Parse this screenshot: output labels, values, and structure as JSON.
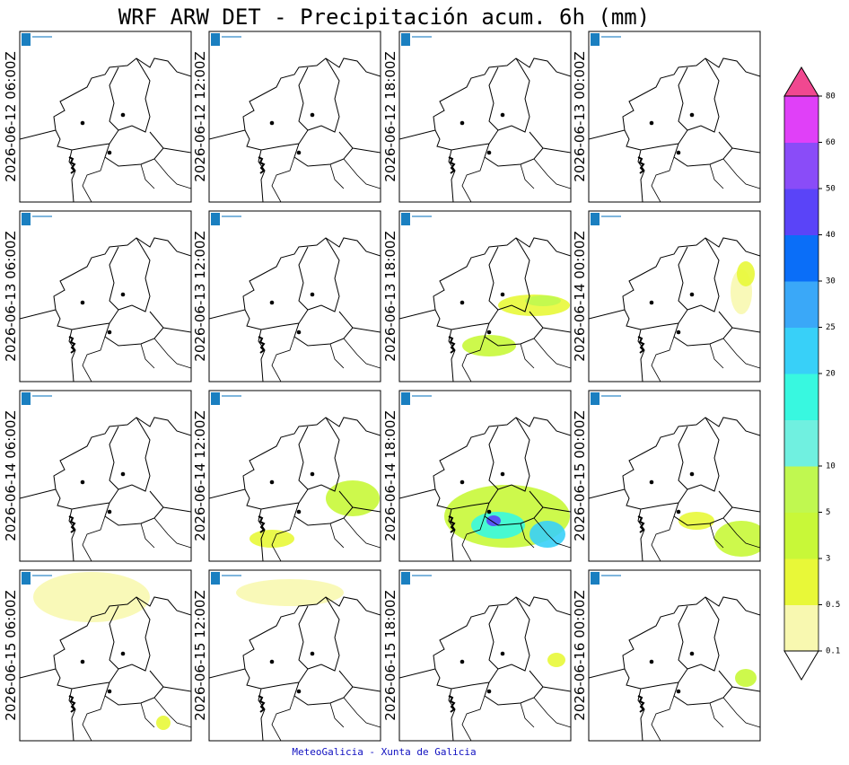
{
  "title": "WRF ARW DET  -  Precipitación acum. 6h (mm)",
  "panels": [
    {
      "label": "2026-06-12 06:00Z"
    },
    {
      "label": "2026-06-12 12:00Z"
    },
    {
      "label": "2026-06-12 18:00Z"
    },
    {
      "label": "2026-06-13 00:00Z"
    },
    {
      "label": "2026-06-13 06:00Z"
    },
    {
      "label": "2026-06-13 12:00Z"
    },
    {
      "label": "2026-06-13 18:00Z"
    },
    {
      "label": "2026-06-14 00:00Z"
    },
    {
      "label": "2026-06-14 06:00Z"
    },
    {
      "label": "2026-06-14 12:00Z"
    },
    {
      "label": "2026-06-14 18:00Z"
    },
    {
      "label": "2026-06-15 00:00Z"
    },
    {
      "label": "2026-06-15 06:00Z"
    },
    {
      "label": "2026-06-15 12:00Z"
    },
    {
      "label": "2026-06-15 18:00Z"
    },
    {
      "label": "2026-06-16 00:00Z"
    }
  ],
  "colorbar": {
    "bounds": [
      0.1,
      0.5,
      3,
      5,
      10,
      null,
      20,
      25,
      30,
      40,
      50,
      60,
      80
    ],
    "colors": [
      "#f8f8b0",
      "#e8f838",
      "#c8f838",
      "#c0f850",
      "#70f0e0",
      "#38f8e0",
      "#38d0f8",
      "#3aa8f8",
      "#0a6ef8",
      "#5a44f8",
      "#8a4cf8",
      "#e040f8"
    ],
    "over_color": "#f04890"
  },
  "footer": "MeteoGalicia - Xunta de Galicia"
}
